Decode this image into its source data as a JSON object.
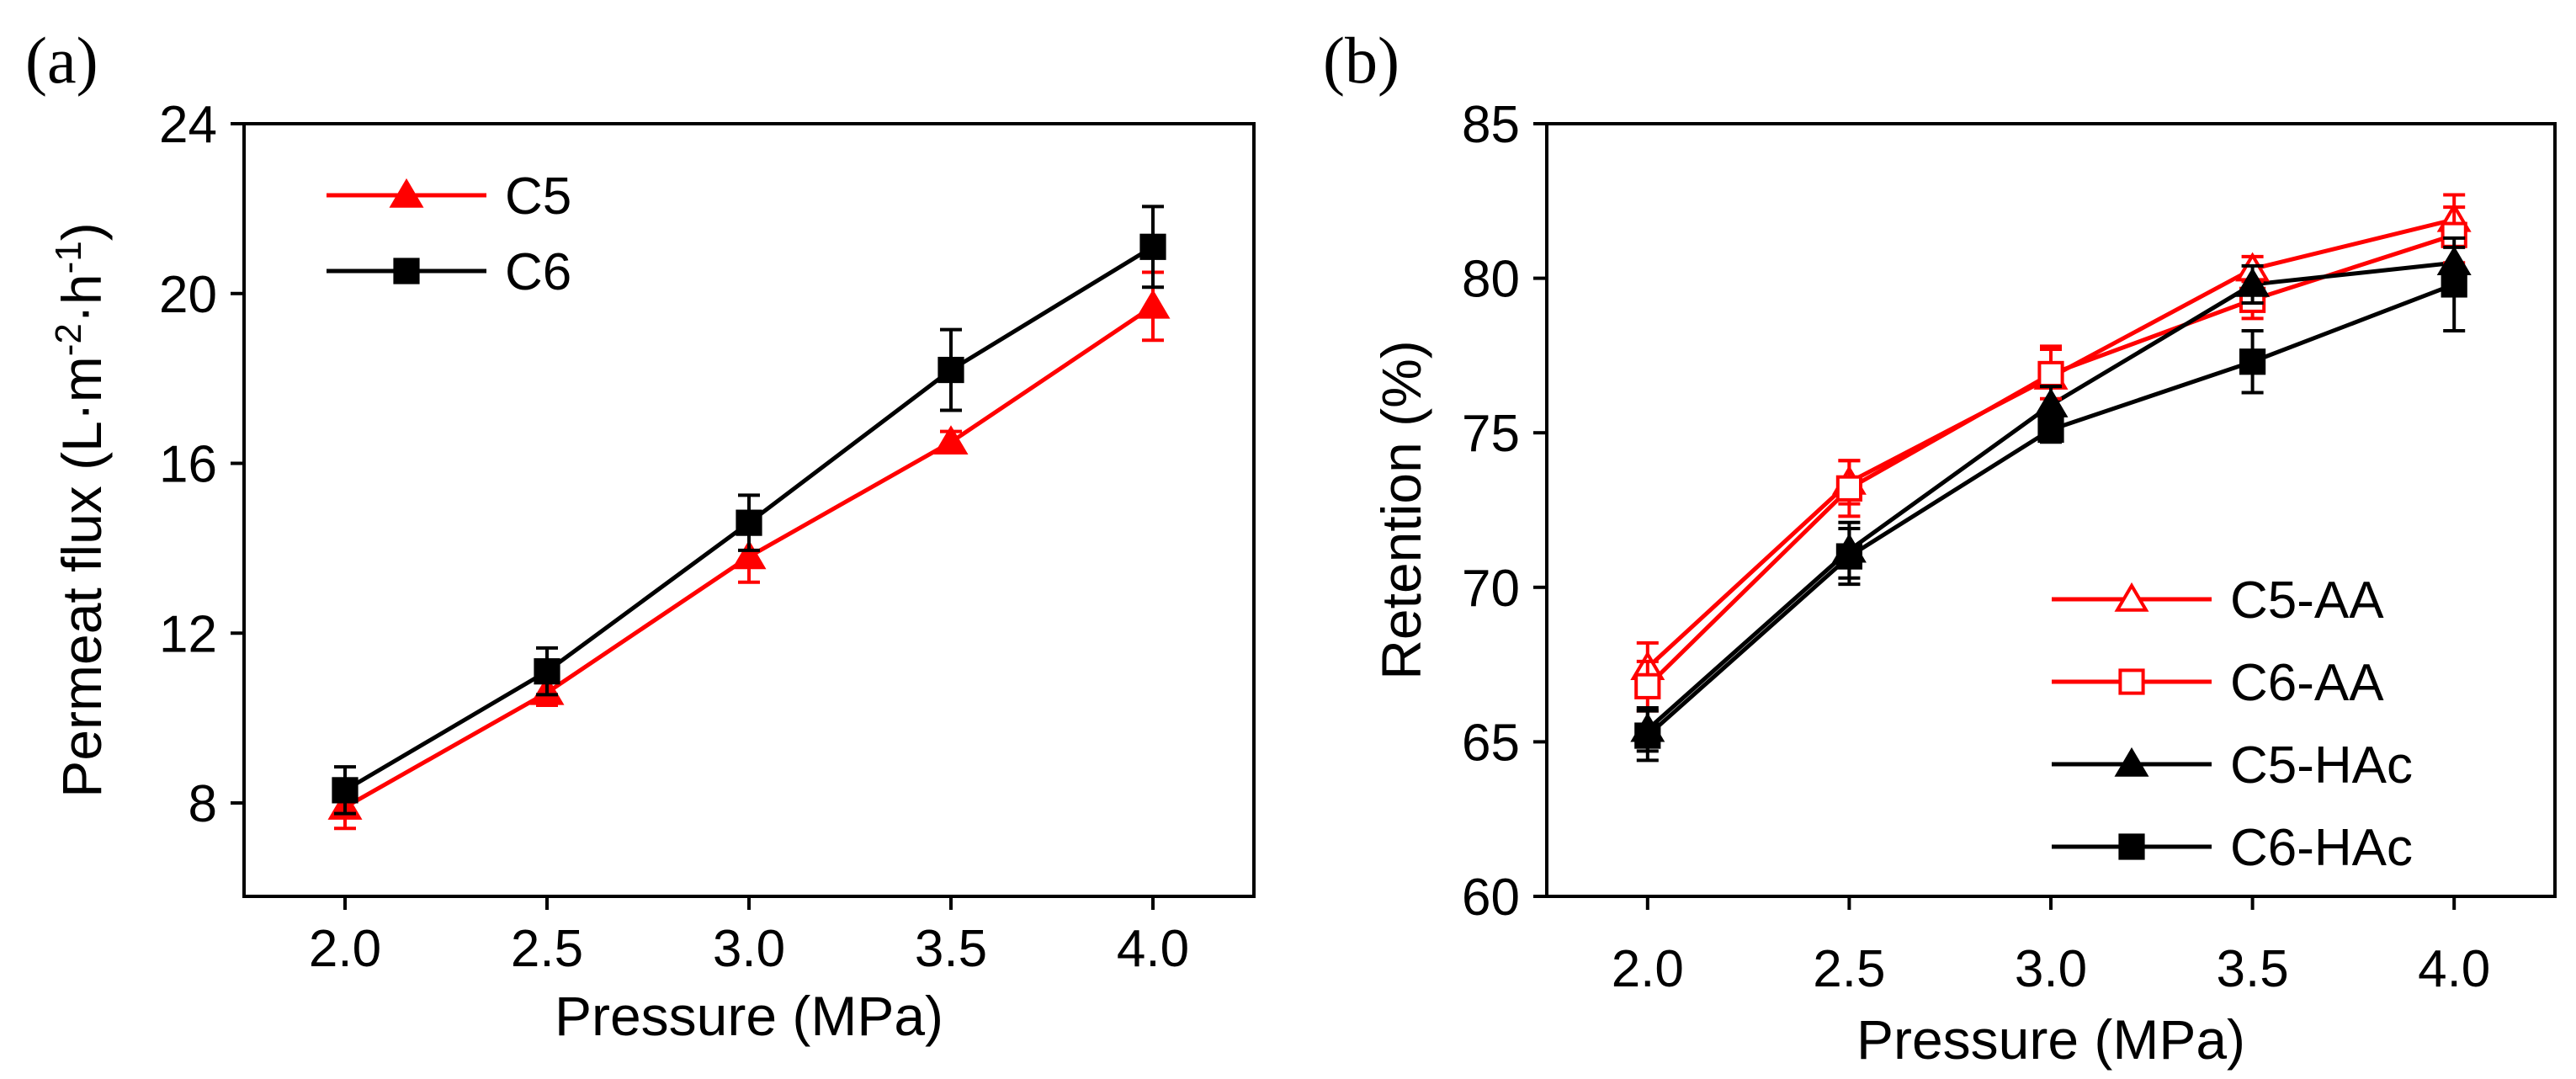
{
  "chart_data": [
    {
      "panel_label": "(a)",
      "type": "line",
      "title": "",
      "xlabel": "Pressure (MPa)",
      "ylabel": "Permeat flux (L·m-2·h-1)",
      "ylabel_parts": {
        "base": "Permeat flux (L·m",
        "exp1": "-2",
        "mid": "·h",
        "exp2": "-1",
        "end": ")"
      },
      "xlim": [
        1.75,
        4.25
      ],
      "ylim": [
        5.8,
        24
      ],
      "x_ticks": [
        2.0,
        2.5,
        3.0,
        3.5,
        4.0
      ],
      "x_tick_labels": [
        "2.0",
        "2.5",
        "3.0",
        "3.5",
        "4.0"
      ],
      "y_ticks": [
        8,
        12,
        16,
        20,
        24
      ],
      "y_tick_labels": [
        "8",
        "12",
        "16",
        "20",
        "24"
      ],
      "legend_position": "top-left",
      "series": [
        {
          "name": "C5",
          "color": "#ff0000",
          "marker": "triangle-filled",
          "x": [
            2.0,
            2.5,
            3.0,
            3.5,
            4.0
          ],
          "values": [
            7.9,
            10.6,
            13.8,
            16.5,
            19.7
          ],
          "errors": [
            0.5,
            0.3,
            0.6,
            0.25,
            0.8
          ]
        },
        {
          "name": "C6",
          "color": "#000000",
          "marker": "square-filled",
          "x": [
            2.0,
            2.5,
            3.0,
            3.5,
            4.0
          ],
          "values": [
            8.3,
            11.1,
            14.6,
            18.2,
            21.1
          ],
          "errors": [
            0.55,
            0.55,
            0.65,
            0.95,
            0.95
          ]
        }
      ]
    },
    {
      "panel_label": "(b)",
      "type": "line",
      "title": "",
      "xlabel": "Pressure (MPa)",
      "ylabel": "Retention (%)",
      "xlim": [
        1.75,
        4.25
      ],
      "ylim": [
        60,
        85
      ],
      "x_ticks": [
        2.0,
        2.5,
        3.0,
        3.5,
        4.0
      ],
      "x_tick_labels": [
        "2.0",
        "2.5",
        "3.0",
        "3.5",
        "4.0"
      ],
      "y_ticks": [
        60,
        65,
        70,
        75,
        80,
        85
      ],
      "y_tick_labels": [
        "60",
        "65",
        "70",
        "75",
        "80",
        "85"
      ],
      "legend_position": "bottom-right",
      "series": [
        {
          "name": "C5-AA",
          "color": "#ff0000",
          "marker": "triangle-open",
          "x": [
            2.0,
            2.5,
            3.0,
            3.5,
            4.0
          ],
          "values": [
            67.4,
            73.4,
            76.8,
            80.3,
            81.9
          ],
          "errors": [
            0.8,
            0.7,
            1.0,
            0.4,
            0.8
          ]
        },
        {
          "name": "C6-AA",
          "color": "#ff0000",
          "marker": "square-open",
          "x": [
            2.0,
            2.5,
            3.0,
            3.5,
            4.0
          ],
          "values": [
            66.8,
            73.2,
            76.9,
            79.3,
            81.4
          ],
          "errors": [
            0.8,
            0.9,
            0.8,
            0.6,
            0.9
          ]
        },
        {
          "name": "C5-HAc",
          "color": "#000000",
          "marker": "triangle-filled",
          "x": [
            2.0,
            2.5,
            3.0,
            3.5,
            4.0
          ],
          "values": [
            65.4,
            71.2,
            75.9,
            79.8,
            80.5
          ],
          "errors": [
            0.7,
            0.9,
            0.6,
            0.6,
            0.5
          ]
        },
        {
          "name": "C6-HAc",
          "color": "#000000",
          "marker": "square-filled",
          "x": [
            2.0,
            2.5,
            3.0,
            3.5,
            4.0
          ],
          "values": [
            65.2,
            71.0,
            75.1,
            77.3,
            79.8
          ],
          "errors": [
            0.8,
            0.9,
            0.4,
            1.0,
            1.5
          ]
        }
      ]
    }
  ]
}
